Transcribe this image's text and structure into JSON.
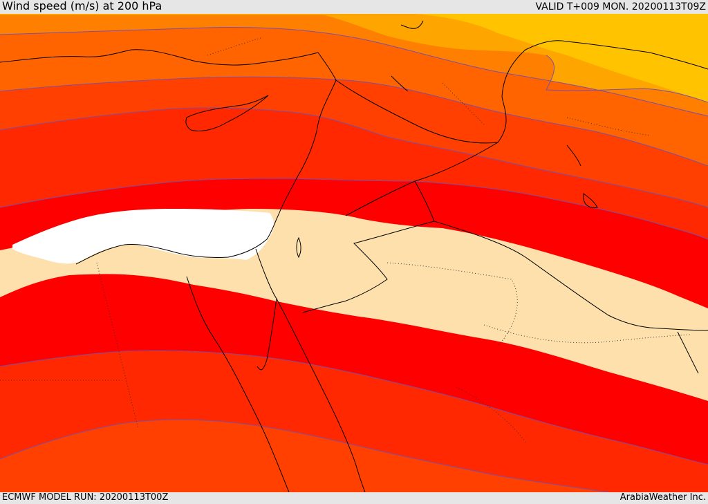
{
  "header": {
    "title": "Wind speed (m/s) at 200 hPa",
    "valid": "VALID T+009 MON. 20200113T09Z"
  },
  "footer": {
    "model_run": "ECMWF MODEL RUN: 20200113T00Z",
    "brand": "ArabiaWeather Inc."
  },
  "colors": {
    "band_yellow": "#ffc300",
    "band_amber": "#ffa500",
    "band_orange": "#ff8000",
    "band_dark_orange": "#ff6400",
    "band_red_orange": "#ff4000",
    "band_red_mid": "#ff2800",
    "band_red": "#ff0000",
    "calm_core": "#fde0ac",
    "jet_max": "#ffffff",
    "contour_line": "#7a4fa8",
    "coastline": "#000000"
  },
  "map": {
    "field": "wind-speed-200hPa",
    "region": "Eastern Mediterranean, Levant, Egypt, Arabia"
  }
}
